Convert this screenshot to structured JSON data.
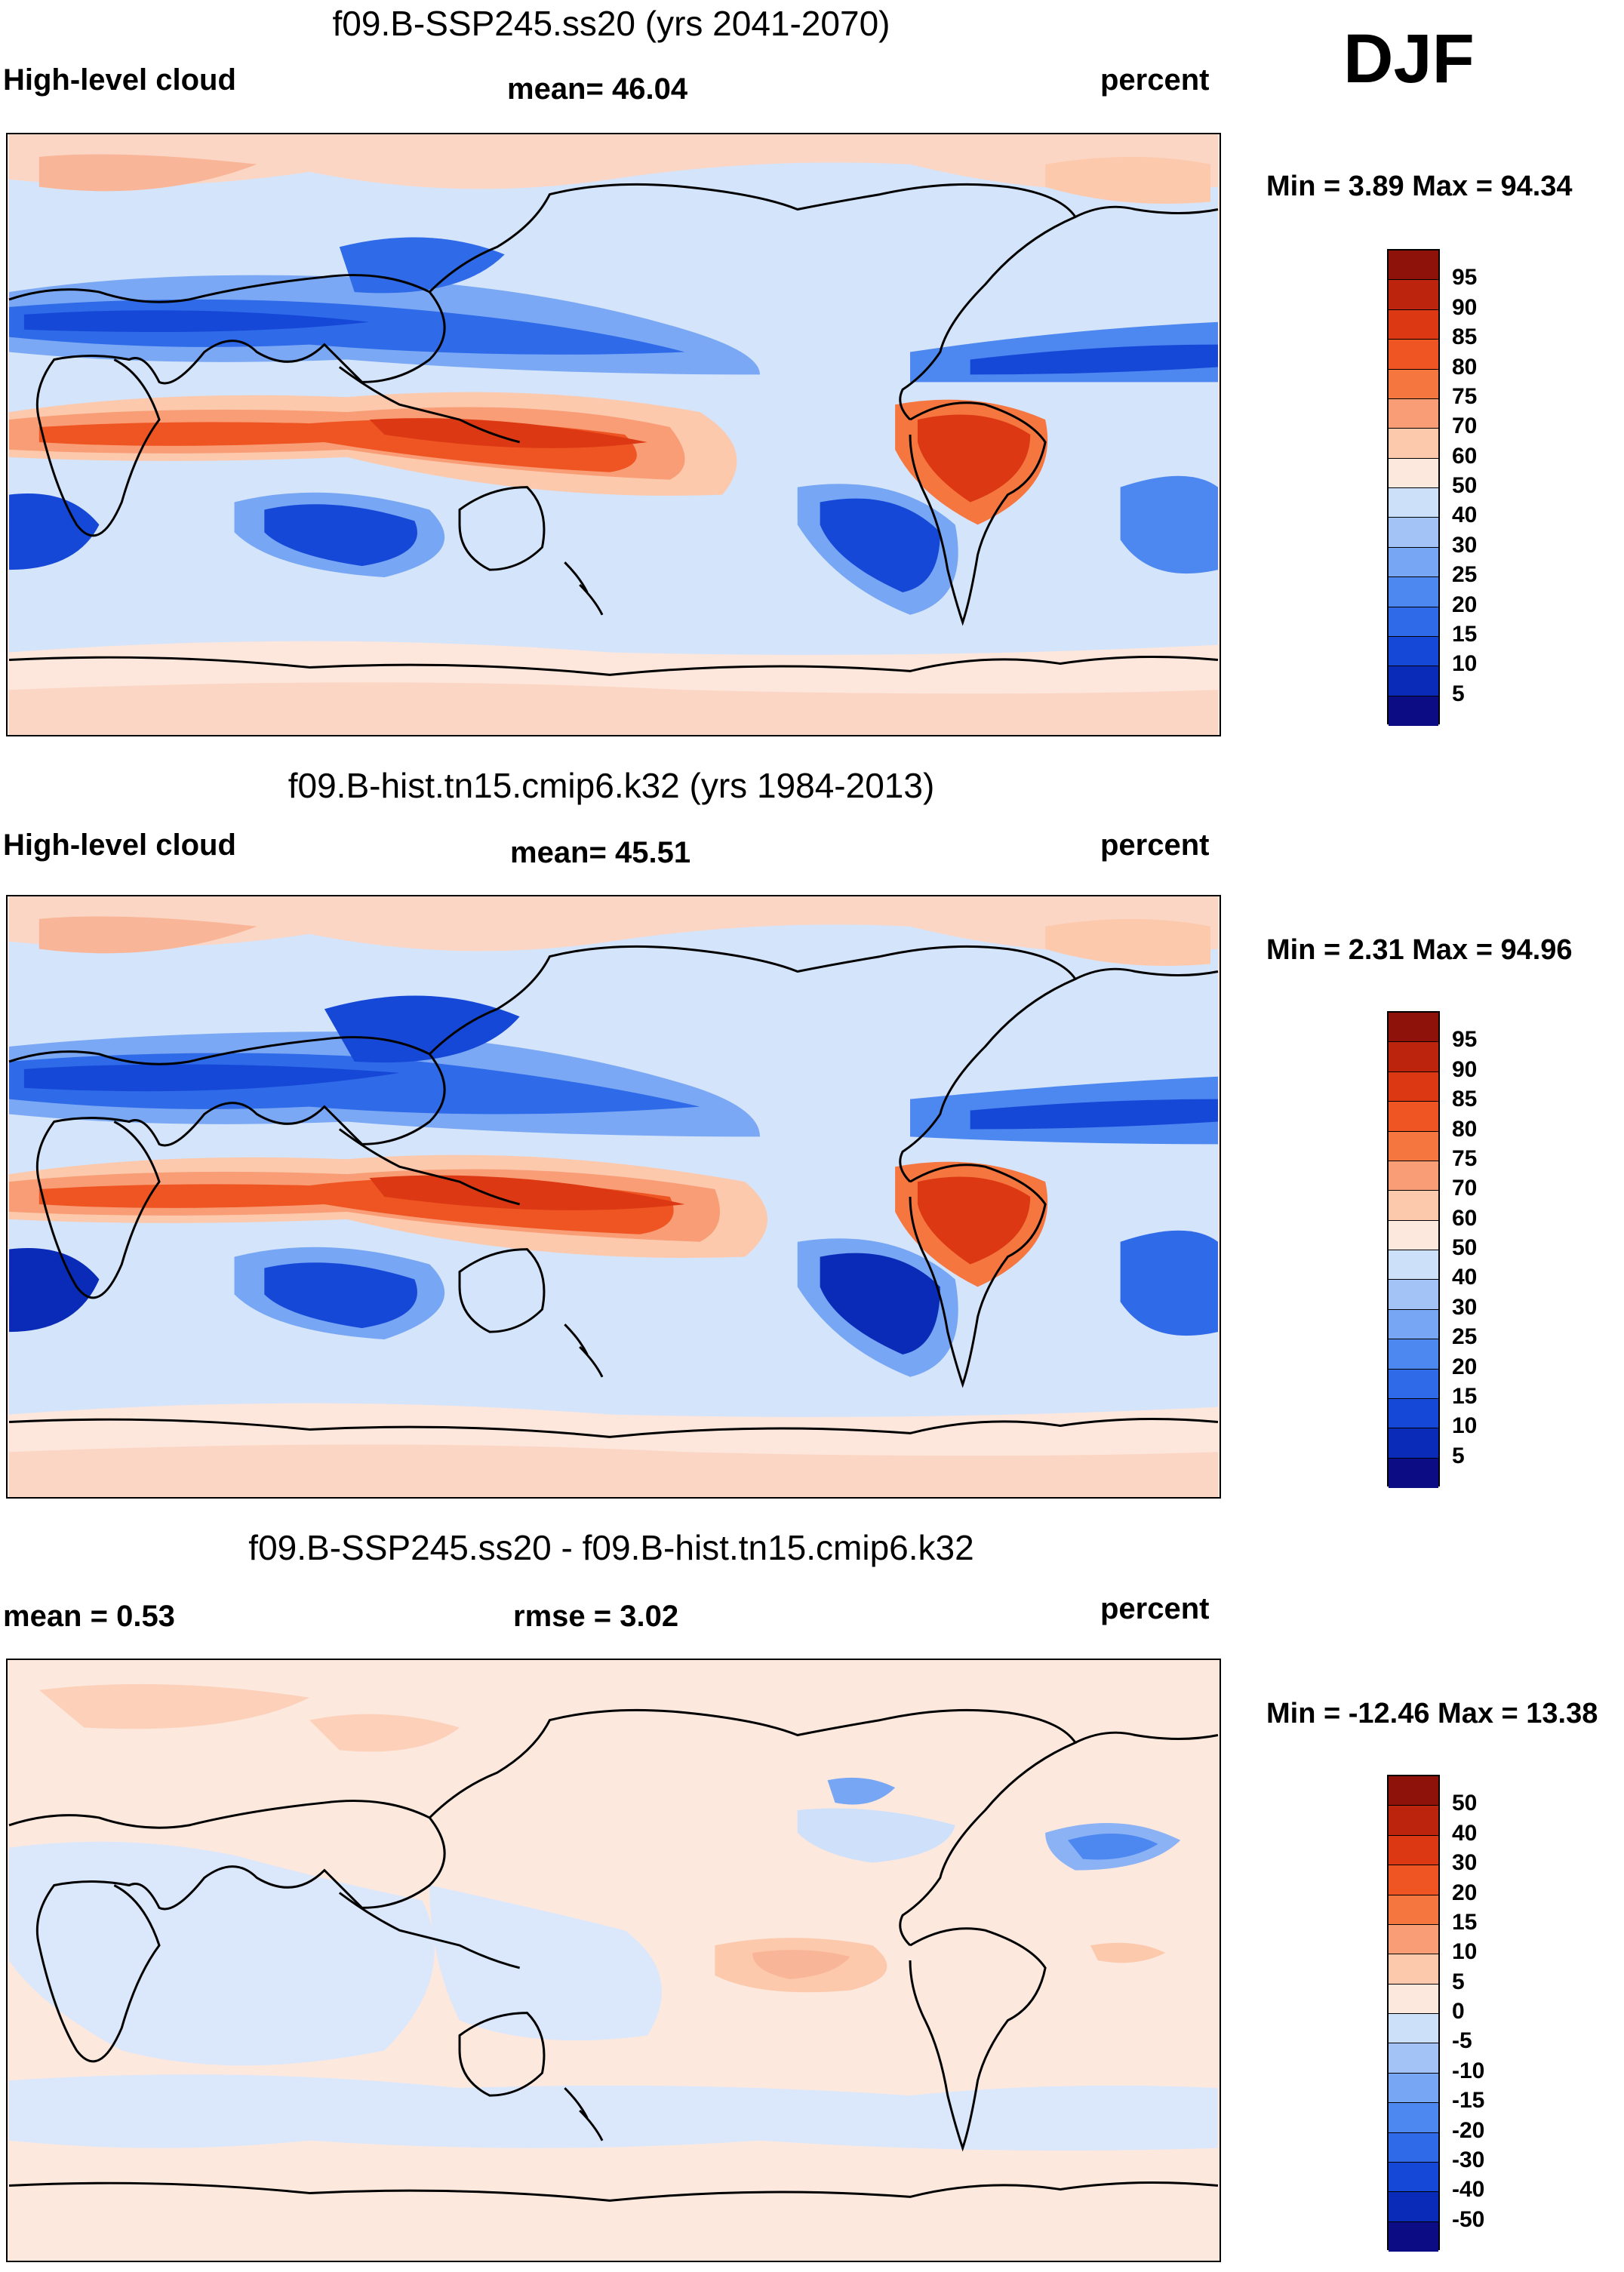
{
  "season": "DJF",
  "palettes": {
    "abs": [
      "#0c0c84",
      "#0a2bb8",
      "#1648d8",
      "#2f6ae8",
      "#4d87f0",
      "#77a6f4",
      "#a3c3f7",
      "#cde0fa",
      "#fde8de",
      "#fcc9ad",
      "#f99d76",
      "#f67640",
      "#ef5522",
      "#db3813",
      "#bd240d",
      "#8f120a"
    ],
    "diff": [
      "#0c0c84",
      "#0a2bb8",
      "#1648d8",
      "#2f6ae8",
      "#4d87f0",
      "#77a6f4",
      "#a3c3f7",
      "#cde0fa",
      "#fde8de",
      "#fcc9ad",
      "#f99d76",
      "#f67640",
      "#ef5522",
      "#db3813",
      "#bd240d",
      "#8f120a"
    ]
  },
  "panels": [
    {
      "title": "f09.B-SSP245.ss20 (yrs 2041-2070)",
      "left_label": "High-level cloud",
      "center_label": "mean=  46.04",
      "units": "percent",
      "minmax": "Min =   3.89 Max =  94.34",
      "colorbar_labels": [
        "95",
        "90",
        "85",
        "80",
        "75",
        "70",
        "60",
        "50",
        "40",
        "30",
        "25",
        "20",
        "15",
        "10",
        "5"
      ]
    },
    {
      "title": "f09.B-hist.tn15.cmip6.k32 (yrs 1984-2013)",
      "left_label": "High-level cloud",
      "center_label": "mean=  45.51",
      "units": "percent",
      "minmax": "Min =   2.31 Max =  94.96",
      "colorbar_labels": [
        "95",
        "90",
        "85",
        "80",
        "75",
        "70",
        "60",
        "50",
        "40",
        "30",
        "25",
        "20",
        "15",
        "10",
        "5"
      ]
    },
    {
      "title": "f09.B-SSP245.ss20 - f09.B-hist.tn15.cmip6.k32",
      "left_label": "mean =   0.53",
      "center_label": "rmse =    3.02",
      "units": "percent",
      "minmax": "Min = -12.46 Max =  13.38",
      "colorbar_labels": [
        "50",
        "40",
        "30",
        "20",
        "15",
        "10",
        "5",
        "0",
        "-5",
        "-10",
        "-15",
        "-20",
        "-30",
        "-40",
        "-50"
      ]
    }
  ]
}
